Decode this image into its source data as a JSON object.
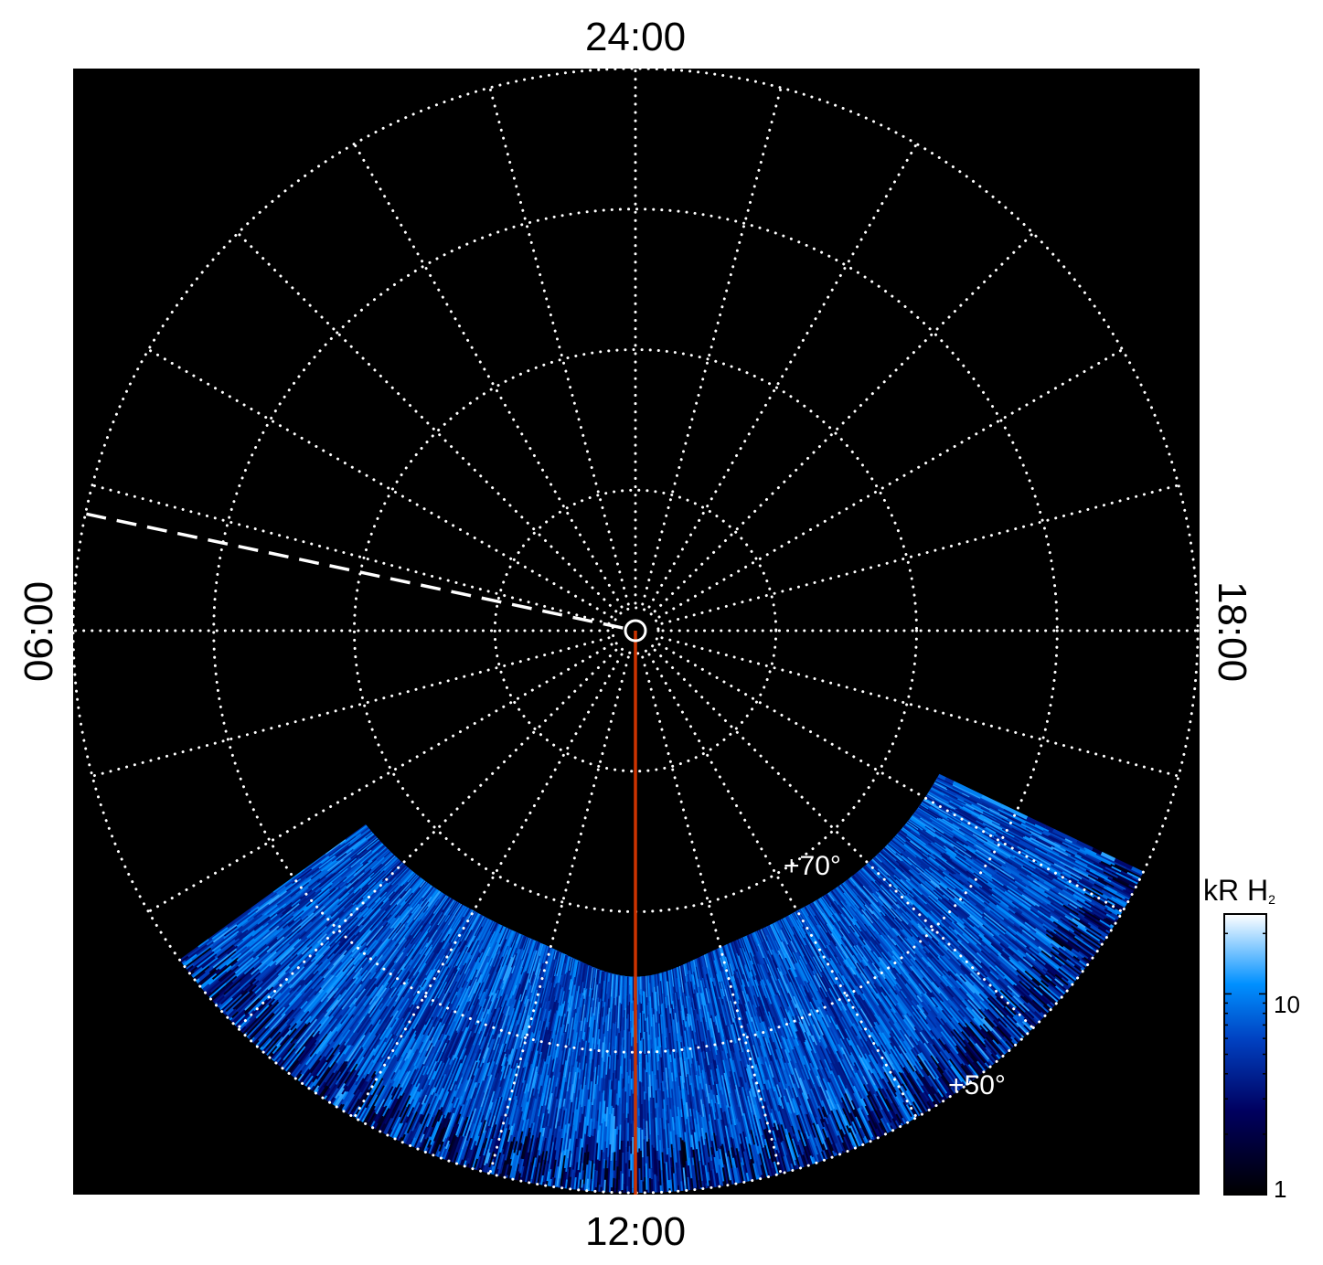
{
  "chart_data": {
    "type": "heatmap",
    "projection": "polar",
    "local_time_labels": {
      "top": "24:00",
      "left": "06:00",
      "bottom": "12:00",
      "right": "18:00"
    },
    "latitude_labels": [
      "+70°",
      "+50°"
    ],
    "latitude_rings_deg": [
      90,
      80,
      70,
      60,
      50
    ],
    "meridian_step_hours": 1,
    "grid": true,
    "background": "#000000",
    "colorbar": {
      "label": "kR H",
      "label_subscript": "2",
      "scale": "log",
      "range": [
        1,
        25
      ],
      "ticks": [
        "1",
        "10"
      ],
      "colormap": [
        "#000000",
        "#000060",
        "#0040c0",
        "#0090ff",
        "#ffffff"
      ]
    },
    "reference_lines": [
      {
        "style": "dashed",
        "color": "#ffffff",
        "local_time_hours": 5.2
      },
      {
        "style": "solid",
        "color": "#cc3300",
        "local_time_hours": 12
      }
    ],
    "emission_region": {
      "local_time_hours": [
        8.4,
        16.3
      ],
      "latitude_deg": [
        50,
        68
      ]
    }
  }
}
